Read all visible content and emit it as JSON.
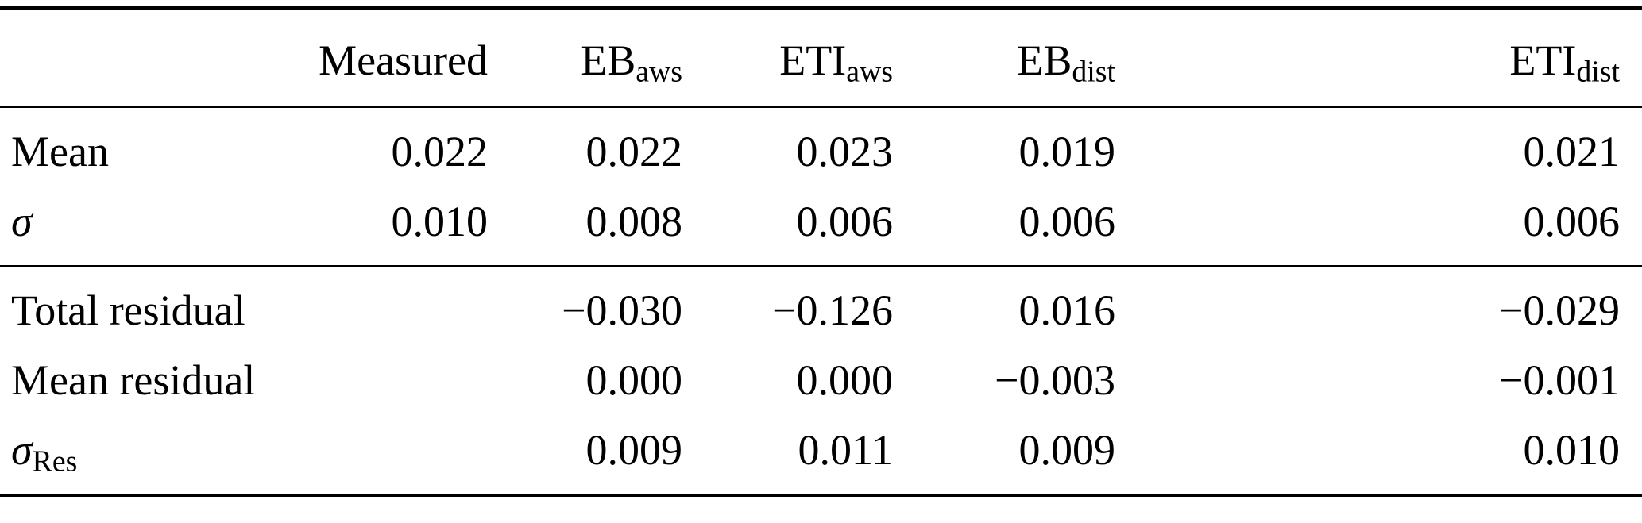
{
  "table": {
    "header": [
      {
        "base": "",
        "sub": ""
      },
      {
        "base": "Measured",
        "sub": ""
      },
      {
        "base": "EB",
        "sub": "aws"
      },
      {
        "base": "ETI",
        "sub": "aws"
      },
      {
        "base": "EB",
        "sub": "dist"
      },
      {
        "base": "ETI",
        "sub": "dist"
      }
    ],
    "sections": [
      {
        "rows": [
          {
            "label_base": "Mean",
            "label_sub": "",
            "values": [
              "0.022",
              "0.022",
              "0.023",
              "0.019",
              "0.021"
            ]
          },
          {
            "label_base": "σ",
            "label_sub": "",
            "values": [
              "0.010",
              "0.008",
              "0.006",
              "0.006",
              "0.006"
            ]
          }
        ]
      },
      {
        "rows": [
          {
            "label_base": "Total residual",
            "label_sub": "",
            "values": [
              "",
              "−0.030",
              "−0.126",
              "0.016",
              "−0.029"
            ]
          },
          {
            "label_base": "Mean residual",
            "label_sub": "",
            "values": [
              "",
              "0.000",
              "0.000",
              "−0.003",
              "−0.001"
            ]
          },
          {
            "label_base": "σ",
            "label_sub": "Res",
            "values": [
              "",
              "0.009",
              "0.011",
              "0.009",
              "0.010"
            ]
          }
        ]
      }
    ]
  },
  "chart_data": {
    "type": "table",
    "columns": [
      "",
      "Measured",
      "EB_aws",
      "ETI_aws",
      "EB_dist",
      "ETI_dist"
    ],
    "rows": [
      {
        "label": "Mean",
        "Measured": 0.022,
        "EB_aws": 0.022,
        "ETI_aws": 0.023,
        "EB_dist": 0.019,
        "ETI_dist": 0.021
      },
      {
        "label": "σ",
        "Measured": 0.01,
        "EB_aws": 0.008,
        "ETI_aws": 0.006,
        "EB_dist": 0.006,
        "ETI_dist": 0.006
      },
      {
        "label": "Total residual",
        "Measured": null,
        "EB_aws": -0.03,
        "ETI_aws": -0.126,
        "EB_dist": 0.016,
        "ETI_dist": -0.029
      },
      {
        "label": "Mean residual",
        "Measured": null,
        "EB_aws": 0.0,
        "ETI_aws": 0.0,
        "EB_dist": -0.003,
        "ETI_dist": -0.001
      },
      {
        "label": "σ_Res",
        "Measured": null,
        "EB_aws": 0.009,
        "ETI_aws": 0.011,
        "EB_dist": 0.009,
        "ETI_dist": 0.01
      }
    ]
  }
}
